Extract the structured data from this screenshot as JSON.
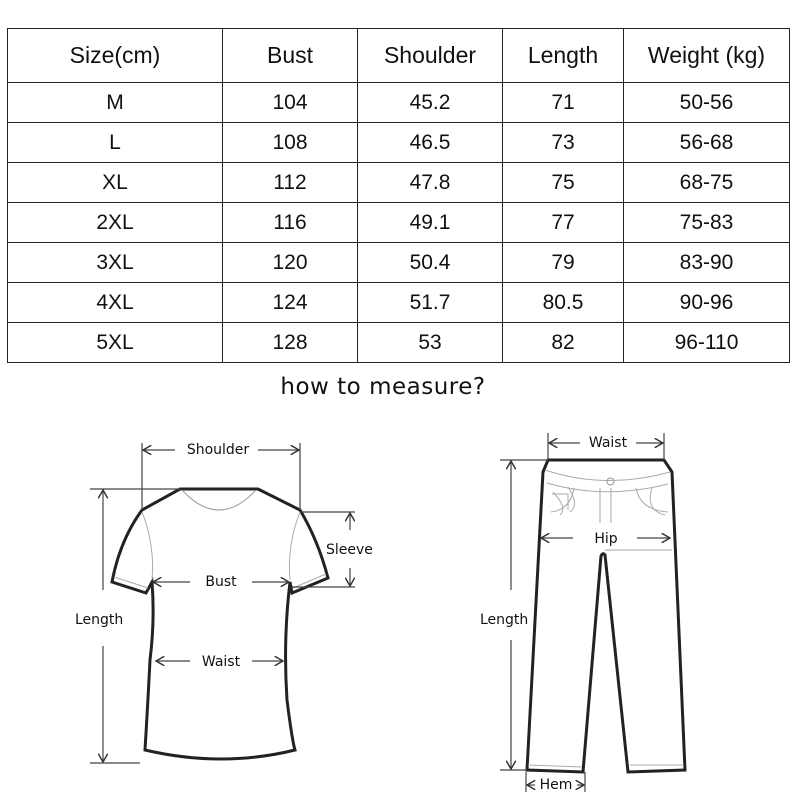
{
  "size_table": {
    "headers": [
      "Size(cm)",
      "Bust",
      "Shoulder",
      "Length",
      "Weight (kg)"
    ],
    "rows": [
      [
        "M",
        "104",
        "45.2",
        "71",
        "50-56"
      ],
      [
        "L",
        "108",
        "46.5",
        "73",
        "56-68"
      ],
      [
        "XL",
        "112",
        "47.8",
        "75",
        "68-75"
      ],
      [
        "2XL",
        "116",
        "49.1",
        "77",
        "75-83"
      ],
      [
        "3XL",
        "120",
        "50.4",
        "79",
        "83-90"
      ],
      [
        "4XL",
        "124",
        "51.7",
        "80.5",
        "90-96"
      ],
      [
        "5XL",
        "128",
        "53",
        "82",
        "96-110"
      ]
    ]
  },
  "measure_title": "how to measure?",
  "tshirt_labels": {
    "shoulder": "Shoulder",
    "sleeve": "Sleeve",
    "bust": "Bust",
    "length": "Length",
    "waist": "Waist"
  },
  "pants_labels": {
    "waist": "Waist",
    "hip": "Hip",
    "length": "Length",
    "hem": "Hem"
  }
}
